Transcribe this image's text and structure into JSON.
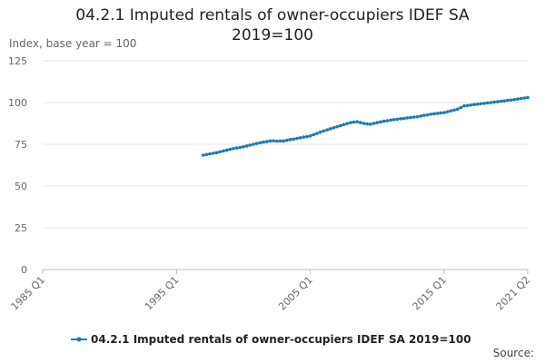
{
  "chart_data": {
    "type": "line",
    "title": "04.2.1 Imputed rentals of owner-occupiers IDEF SA 2019=100",
    "y_label": "Index, base year = 100",
    "source": "Source:",
    "categories": [
      "1985 Q1",
      null,
      null,
      null,
      null,
      null,
      null,
      null,
      null,
      null,
      null,
      null,
      null,
      null,
      null,
      null,
      null,
      null,
      null,
      null,
      null,
      null,
      null,
      null,
      null,
      null,
      null,
      null,
      null,
      null,
      null,
      null,
      null,
      null,
      null,
      null,
      null,
      null,
      null,
      null,
      "1995 Q1",
      null,
      null,
      null,
      null,
      null,
      null,
      null,
      null,
      null,
      null,
      null,
      null,
      null,
      null,
      null,
      null,
      null,
      null,
      null,
      null,
      null,
      null,
      null,
      null,
      null,
      null,
      null,
      null,
      null,
      null,
      null,
      null,
      null,
      null,
      null,
      null,
      null,
      null,
      null,
      "2005 Q1",
      null,
      null,
      null,
      null,
      null,
      null,
      null,
      null,
      null,
      null,
      null,
      null,
      null,
      null,
      null,
      null,
      null,
      null,
      null,
      null,
      null,
      null,
      null,
      null,
      null,
      null,
      null,
      null,
      null,
      null,
      null,
      null,
      null,
      null,
      null,
      null,
      null,
      null,
      null,
      "2015 Q1",
      null,
      null,
      null,
      null,
      null,
      null,
      null,
      null,
      null,
      null,
      null,
      null,
      null,
      null,
      null,
      null,
      null,
      null,
      null,
      null,
      null,
      null,
      null,
      null,
      "2021 Q2"
    ],
    "series": [
      {
        "name": "04.2.1 Imputed rentals of owner-occupiers IDEF SA 2019=100",
        "color": "#1f7ab8",
        "values": [
          null,
          null,
          null,
          null,
          null,
          null,
          null,
          null,
          null,
          null,
          null,
          null,
          null,
          null,
          null,
          null,
          null,
          null,
          null,
          null,
          null,
          null,
          null,
          null,
          null,
          null,
          null,
          null,
          null,
          null,
          null,
          null,
          null,
          null,
          null,
          null,
          null,
          null,
          null,
          null,
          null,
          null,
          null,
          null,
          null,
          null,
          null,
          null,
          68.5,
          68.9,
          69.3,
          69.6,
          70.0,
          70.5,
          71.0,
          71.5,
          72.0,
          72.4,
          72.8,
          73.1,
          73.5,
          74.0,
          74.5,
          75.0,
          75.5,
          75.9,
          76.3,
          76.6,
          77.0,
          77.1,
          76.9,
          77.0,
          77.0,
          77.4,
          77.8,
          78.1,
          78.5,
          78.9,
          79.3,
          79.6,
          80.0,
          80.8,
          81.5,
          82.3,
          83.0,
          83.6,
          84.3,
          84.9,
          85.5,
          86.1,
          86.8,
          87.4,
          88.0,
          88.3,
          88.5,
          88.0,
          87.5,
          87.2,
          87.0,
          87.5,
          88.0,
          88.4,
          88.8,
          89.1,
          89.5,
          89.8,
          90.0,
          90.3,
          90.5,
          90.8,
          91.0,
          91.3,
          91.5,
          91.9,
          92.3,
          92.6,
          93.0,
          93.3,
          93.5,
          93.8,
          94.0,
          94.5,
          95.0,
          95.5,
          96.0,
          97.0,
          98.0,
          98.2,
          98.5,
          98.8,
          99.0,
          99.3,
          99.5,
          99.8,
          100.0,
          100.3,
          100.5,
          100.8,
          101.0,
          101.3,
          101.5,
          101.8,
          102.1,
          102.4,
          102.7,
          103.0
        ]
      }
    ],
    "ylim": [
      0,
      125
    ],
    "yticks": [
      0,
      25,
      50,
      75,
      100,
      125
    ],
    "grid": true
  }
}
